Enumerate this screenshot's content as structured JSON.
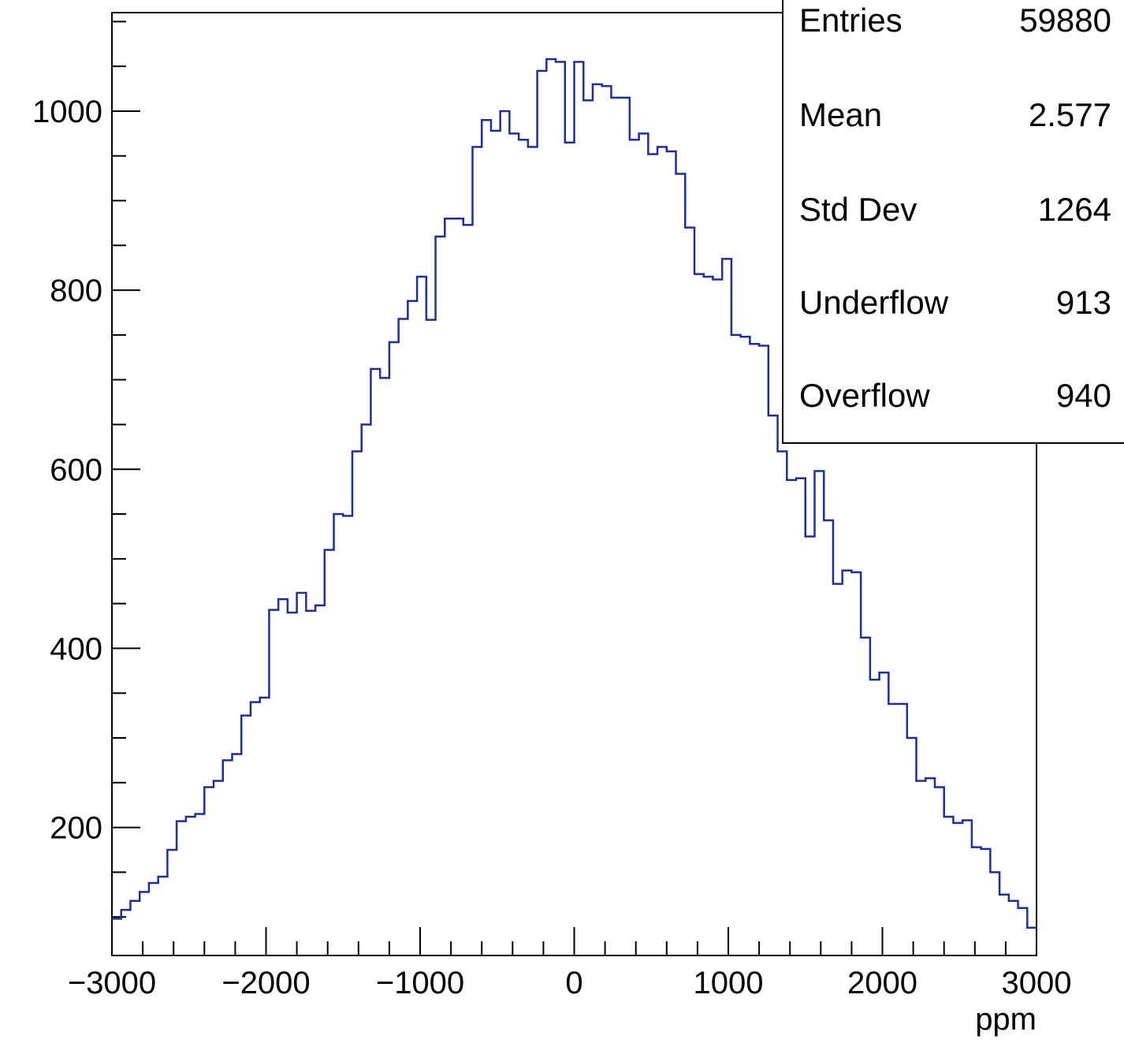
{
  "chart_data": {
    "type": "histogram",
    "title": "",
    "xlabel": "ppm",
    "ylabel": "",
    "xlim": [
      -3000,
      3000
    ],
    "ylim": [
      57,
      1110
    ],
    "bin_width": 60,
    "bin_low_edge": -3000,
    "x_ticks": [
      -3000,
      -2000,
      -1000,
      0,
      1000,
      2000,
      3000
    ],
    "x_tick_labels": [
      "−3000",
      "−2000",
      "−1000",
      "0",
      "1000",
      "2000",
      "3000"
    ],
    "y_ticks": [
      200,
      400,
      600,
      800,
      1000
    ],
    "y_tick_labels": [
      "200",
      "400",
      "600",
      "800",
      "1000"
    ],
    "line_color": "#1c2f9c",
    "values": [
      98,
      108,
      118,
      128,
      138,
      145,
      175,
      207,
      212,
      215,
      245,
      252,
      275,
      282,
      325,
      340,
      345,
      443,
      455,
      440,
      462,
      442,
      448,
      510,
      550,
      548,
      620,
      650,
      712,
      702,
      742,
      768,
      788,
      815,
      767,
      860,
      880,
      880,
      873,
      960,
      990,
      978,
      1000,
      975,
      968,
      960,
      1045,
      1058,
      1055,
      965,
      1055,
      1012,
      1030,
      1028,
      1015,
      1015,
      968,
      975,
      952,
      960,
      955,
      930,
      870,
      818,
      815,
      812,
      835,
      750,
      748,
      740,
      738,
      660,
      620,
      588,
      590,
      525,
      598,
      543,
      472,
      487,
      485,
      412,
      365,
      373,
      338,
      338,
      300,
      252,
      255,
      245,
      212,
      205,
      208,
      178,
      176,
      150,
      125,
      118,
      110,
      88
    ],
    "stats": {
      "rows": [
        {
          "label": "Entries",
          "value": "59880"
        },
        {
          "label": "Mean",
          "value": "2.577"
        },
        {
          "label": "Std Dev",
          "value": "1264"
        },
        {
          "label": "Underflow",
          "value": "913"
        },
        {
          "label": "Overflow",
          "value": "940"
        }
      ]
    }
  }
}
